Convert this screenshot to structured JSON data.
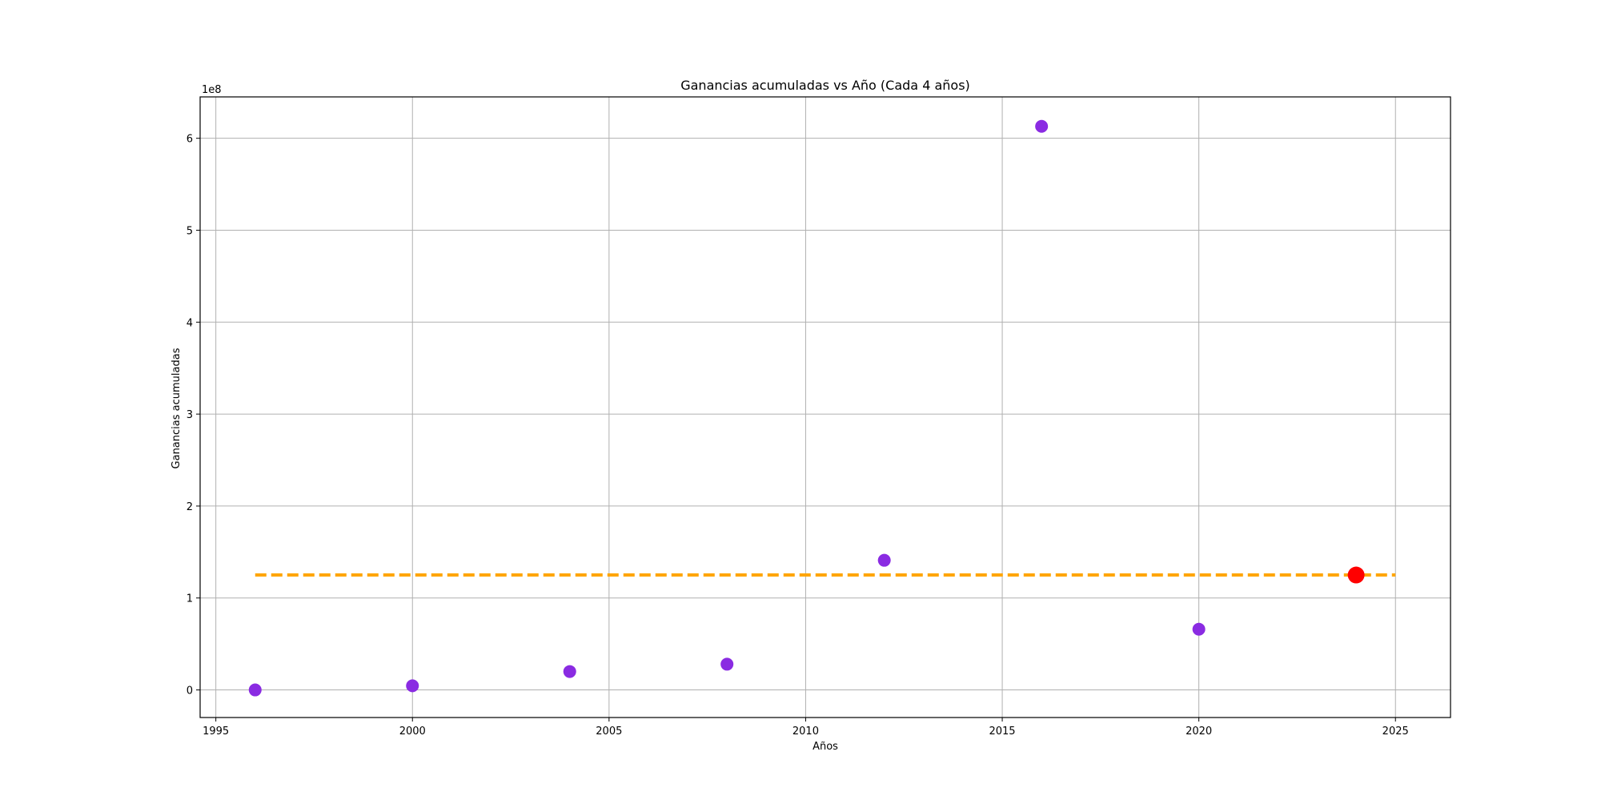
{
  "chart_data": {
    "type": "scatter",
    "title": "Ganancias acumuladas vs Año (Cada 4 años)",
    "xlabel": "Años",
    "ylabel": "Ganancias acumuladas",
    "y_offset_text": "1e8",
    "xlim": [
      1994.6,
      2026.4
    ],
    "ylim": [
      -30000000,
      645000000
    ],
    "x_ticks": [
      1995,
      2000,
      2005,
      2010,
      2015,
      2020,
      2025
    ],
    "y_ticks": [
      0,
      100000000,
      200000000,
      300000000,
      400000000,
      500000000,
      600000000
    ],
    "y_tick_labels": [
      "0",
      "1",
      "2",
      "3",
      "4",
      "5",
      "6"
    ],
    "grid": true,
    "series": [
      {
        "kind": "scatter",
        "color": "#8a2be2",
        "points": [
          {
            "x": 1996,
            "y": 0
          },
          {
            "x": 2000,
            "y": 4500000
          },
          {
            "x": 2004,
            "y": 20000000
          },
          {
            "x": 2008,
            "y": 28000000
          },
          {
            "x": 2012,
            "y": 141000000
          },
          {
            "x": 2016,
            "y": 613000000
          },
          {
            "x": 2020,
            "y": 66000000
          }
        ]
      },
      {
        "kind": "dashed-line",
        "color": "#ffa500",
        "x": [
          1996,
          2025
        ],
        "y": [
          125000000,
          125000000
        ]
      },
      {
        "kind": "highlight-point",
        "color": "#ff0000",
        "points": [
          {
            "x": 2024,
            "y": 125000000
          }
        ]
      }
    ]
  }
}
